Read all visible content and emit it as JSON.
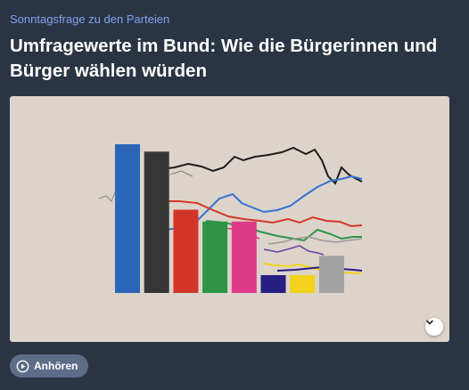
{
  "article": {
    "kicker": "Sonntagsfrage zu den Parteien",
    "headline": "Umfragewerte im Bund: Wie die Bürgerinnen und Bürger wählen würden"
  },
  "illustration": {
    "description_icon": "bar-and-line-chart-illustration",
    "bar_colors": [
      "#2a66b8",
      "#363636",
      "#d33628",
      "#2f9446",
      "#de3a8a",
      "#261e80",
      "#f2d21a",
      "#a3a3a3"
    ],
    "bar_levels": [
      1.0,
      0.95,
      0.56,
      0.48,
      0.48,
      0.12,
      0.12,
      0.25
    ],
    "line_colors": [
      "#1c1c1c",
      "#3572d0",
      "#d33628",
      "#2f9446",
      "#de3a8a",
      "#261e80",
      "#f2d21a",
      "#9b9b9b",
      "#6b3f9c"
    ],
    "expand_icon": "chevron-down-icon"
  },
  "audio": {
    "listen_label": "Anhören",
    "icon": "play-circle-icon"
  }
}
